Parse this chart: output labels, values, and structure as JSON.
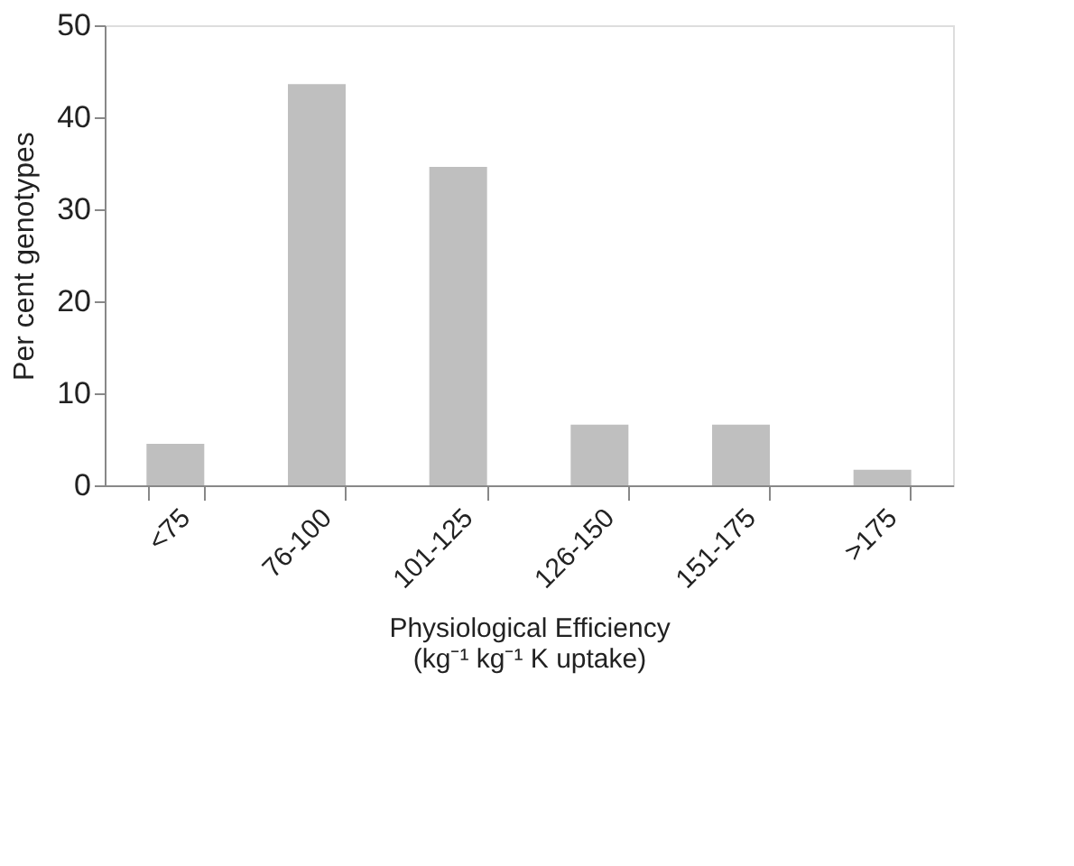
{
  "chart_data": {
    "type": "bar",
    "xlabel": "Physiological Efficiency\n(kg⁻¹ kg⁻¹ K uptake)",
    "ylabel": "Per cent genotypes",
    "categories": [
      "<75",
      "76-100",
      "101-125",
      "126-150",
      "151-175",
      ">175"
    ],
    "values": [
      4.5,
      43.6,
      34.6,
      6.6,
      6.6,
      1.7
    ],
    "color": "#bfbfbf",
    "ylim": [
      0,
      50
    ],
    "yticks": [
      0,
      10,
      20,
      30,
      40,
      50
    ],
    "grid": false,
    "legend": false
  }
}
